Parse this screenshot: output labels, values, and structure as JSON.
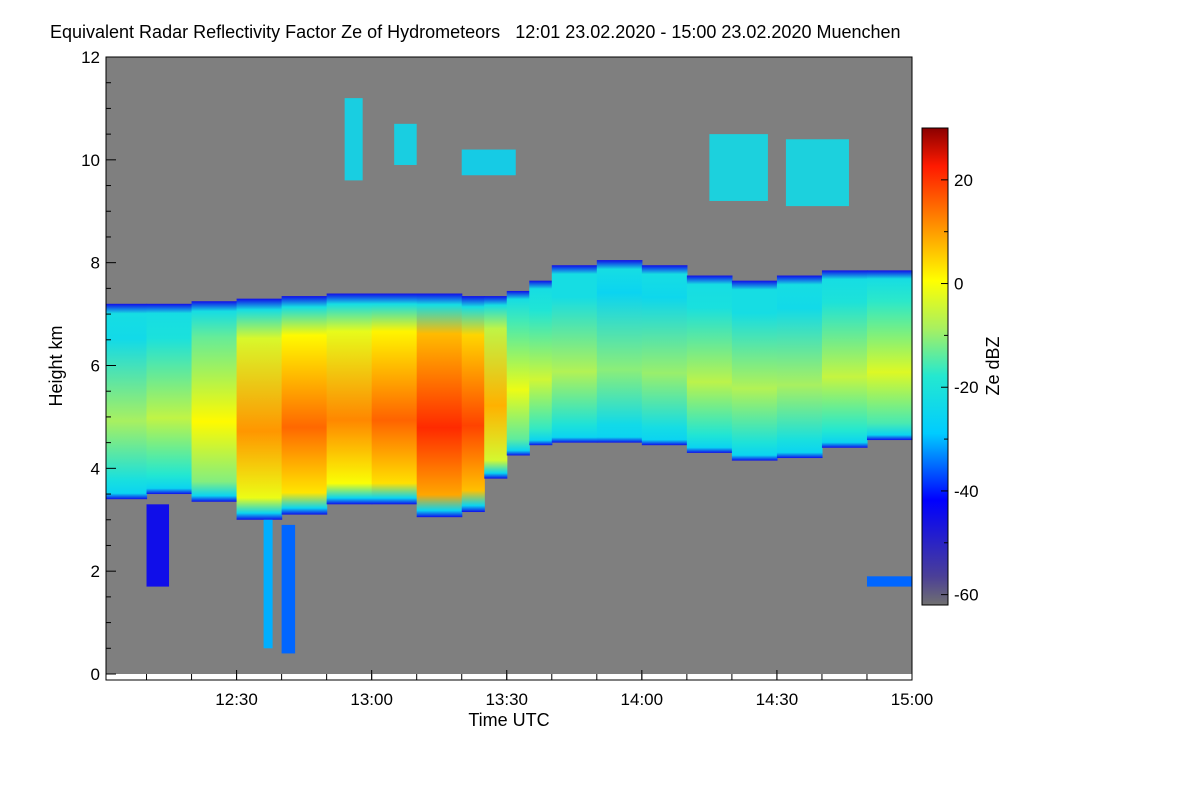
{
  "chart_data": {
    "type": "heatmap",
    "title": "Equivalent Radar Reflectivity Factor Ze of Hydrometeors",
    "period": "12:01 23.02.2020 - 15:00 23.02.2020",
    "location": "Muenchen",
    "xlabel": "Time UTC",
    "ylabel": "Height km",
    "xlim_minutes_utc": [
      721,
      900
    ],
    "x_ticks": [
      {
        "label": "12:30",
        "value": 750
      },
      {
        "label": "13:00",
        "value": 780
      },
      {
        "label": "13:30",
        "value": 810
      },
      {
        "label": "14:00",
        "value": 840
      },
      {
        "label": "14:30",
        "value": 870
      },
      {
        "label": "15:00",
        "value": 900
      }
    ],
    "ylim": [
      0,
      12
    ],
    "y_ticks": [
      {
        "label": "0",
        "value": 0
      },
      {
        "label": "2",
        "value": 2
      },
      {
        "label": "4",
        "value": 4
      },
      {
        "label": "6",
        "value": 6
      },
      {
        "label": "8",
        "value": 8
      },
      {
        "label": "10",
        "value": 10
      },
      {
        "label": "12",
        "value": 12
      }
    ],
    "colorbar": {
      "label": "Ze dBZ",
      "range": [
        -62,
        30
      ],
      "ticks": [
        {
          "label": "20",
          "value": 20
        },
        {
          "label": "0",
          "value": 0
        },
        {
          "label": "-20",
          "value": -20
        },
        {
          "label": "-40",
          "value": -40
        },
        {
          "label": "-60",
          "value": -60
        }
      ]
    },
    "background_color": "#7f7f7f",
    "main_layer": {
      "times": [
        721,
        730,
        740,
        750,
        760,
        770,
        780,
        790,
        800,
        805,
        810,
        815,
        820,
        830,
        840,
        850,
        860,
        870,
        880,
        890,
        900
      ],
      "top_km": [
        7.2,
        7.2,
        7.2,
        7.3,
        7.3,
        7.4,
        7.4,
        7.4,
        7.4,
        7.3,
        7.4,
        7.5,
        7.8,
        8.1,
        8.0,
        7.9,
        7.6,
        7.7,
        7.8,
        7.9,
        7.8
      ],
      "base_km": [
        3.4,
        3.4,
        3.6,
        3.1,
        2.9,
        3.3,
        3.3,
        3.3,
        2.8,
        3.5,
        4.1,
        4.4,
        4.5,
        4.5,
        4.5,
        4.4,
        4.2,
        4.1,
        4.3,
        4.5,
        4.6
      ],
      "peak_ze_dbz": [
        -8,
        -10,
        -3,
        4,
        16,
        13,
        10,
        20,
        21,
        15,
        0,
        -4,
        -6,
        -10,
        -12,
        -8,
        -6,
        -10,
        -8,
        -4,
        -3
      ]
    },
    "cirrus_patches": [
      {
        "start": 774,
        "end": 778,
        "base_km": 9.6,
        "top_km": 11.2,
        "ze_dbz": -24
      },
      {
        "start": 785,
        "end": 790,
        "base_km": 9.9,
        "top_km": 10.7,
        "ze_dbz": -24
      },
      {
        "start": 800,
        "end": 812,
        "base_km": 9.7,
        "top_km": 10.2,
        "ze_dbz": -25
      },
      {
        "start": 855,
        "end": 868,
        "base_km": 9.2,
        "top_km": 10.5,
        "ze_dbz": -23
      },
      {
        "start": 872,
        "end": 886,
        "base_km": 9.1,
        "top_km": 10.4,
        "ze_dbz": -23
      }
    ],
    "fallstreaks": [
      {
        "start": 730,
        "end": 735,
        "base_km": 1.7,
        "top_km": 3.3,
        "ze_dbz": -45
      },
      {
        "start": 756,
        "end": 758,
        "base_km": 0.5,
        "top_km": 3.0,
        "ze_dbz": -30
      },
      {
        "start": 760,
        "end": 763,
        "base_km": 0.4,
        "top_km": 2.9,
        "ze_dbz": -35
      },
      {
        "start": 890,
        "end": 900,
        "base_km": 1.7,
        "top_km": 1.9,
        "ze_dbz": -35
      }
    ]
  }
}
